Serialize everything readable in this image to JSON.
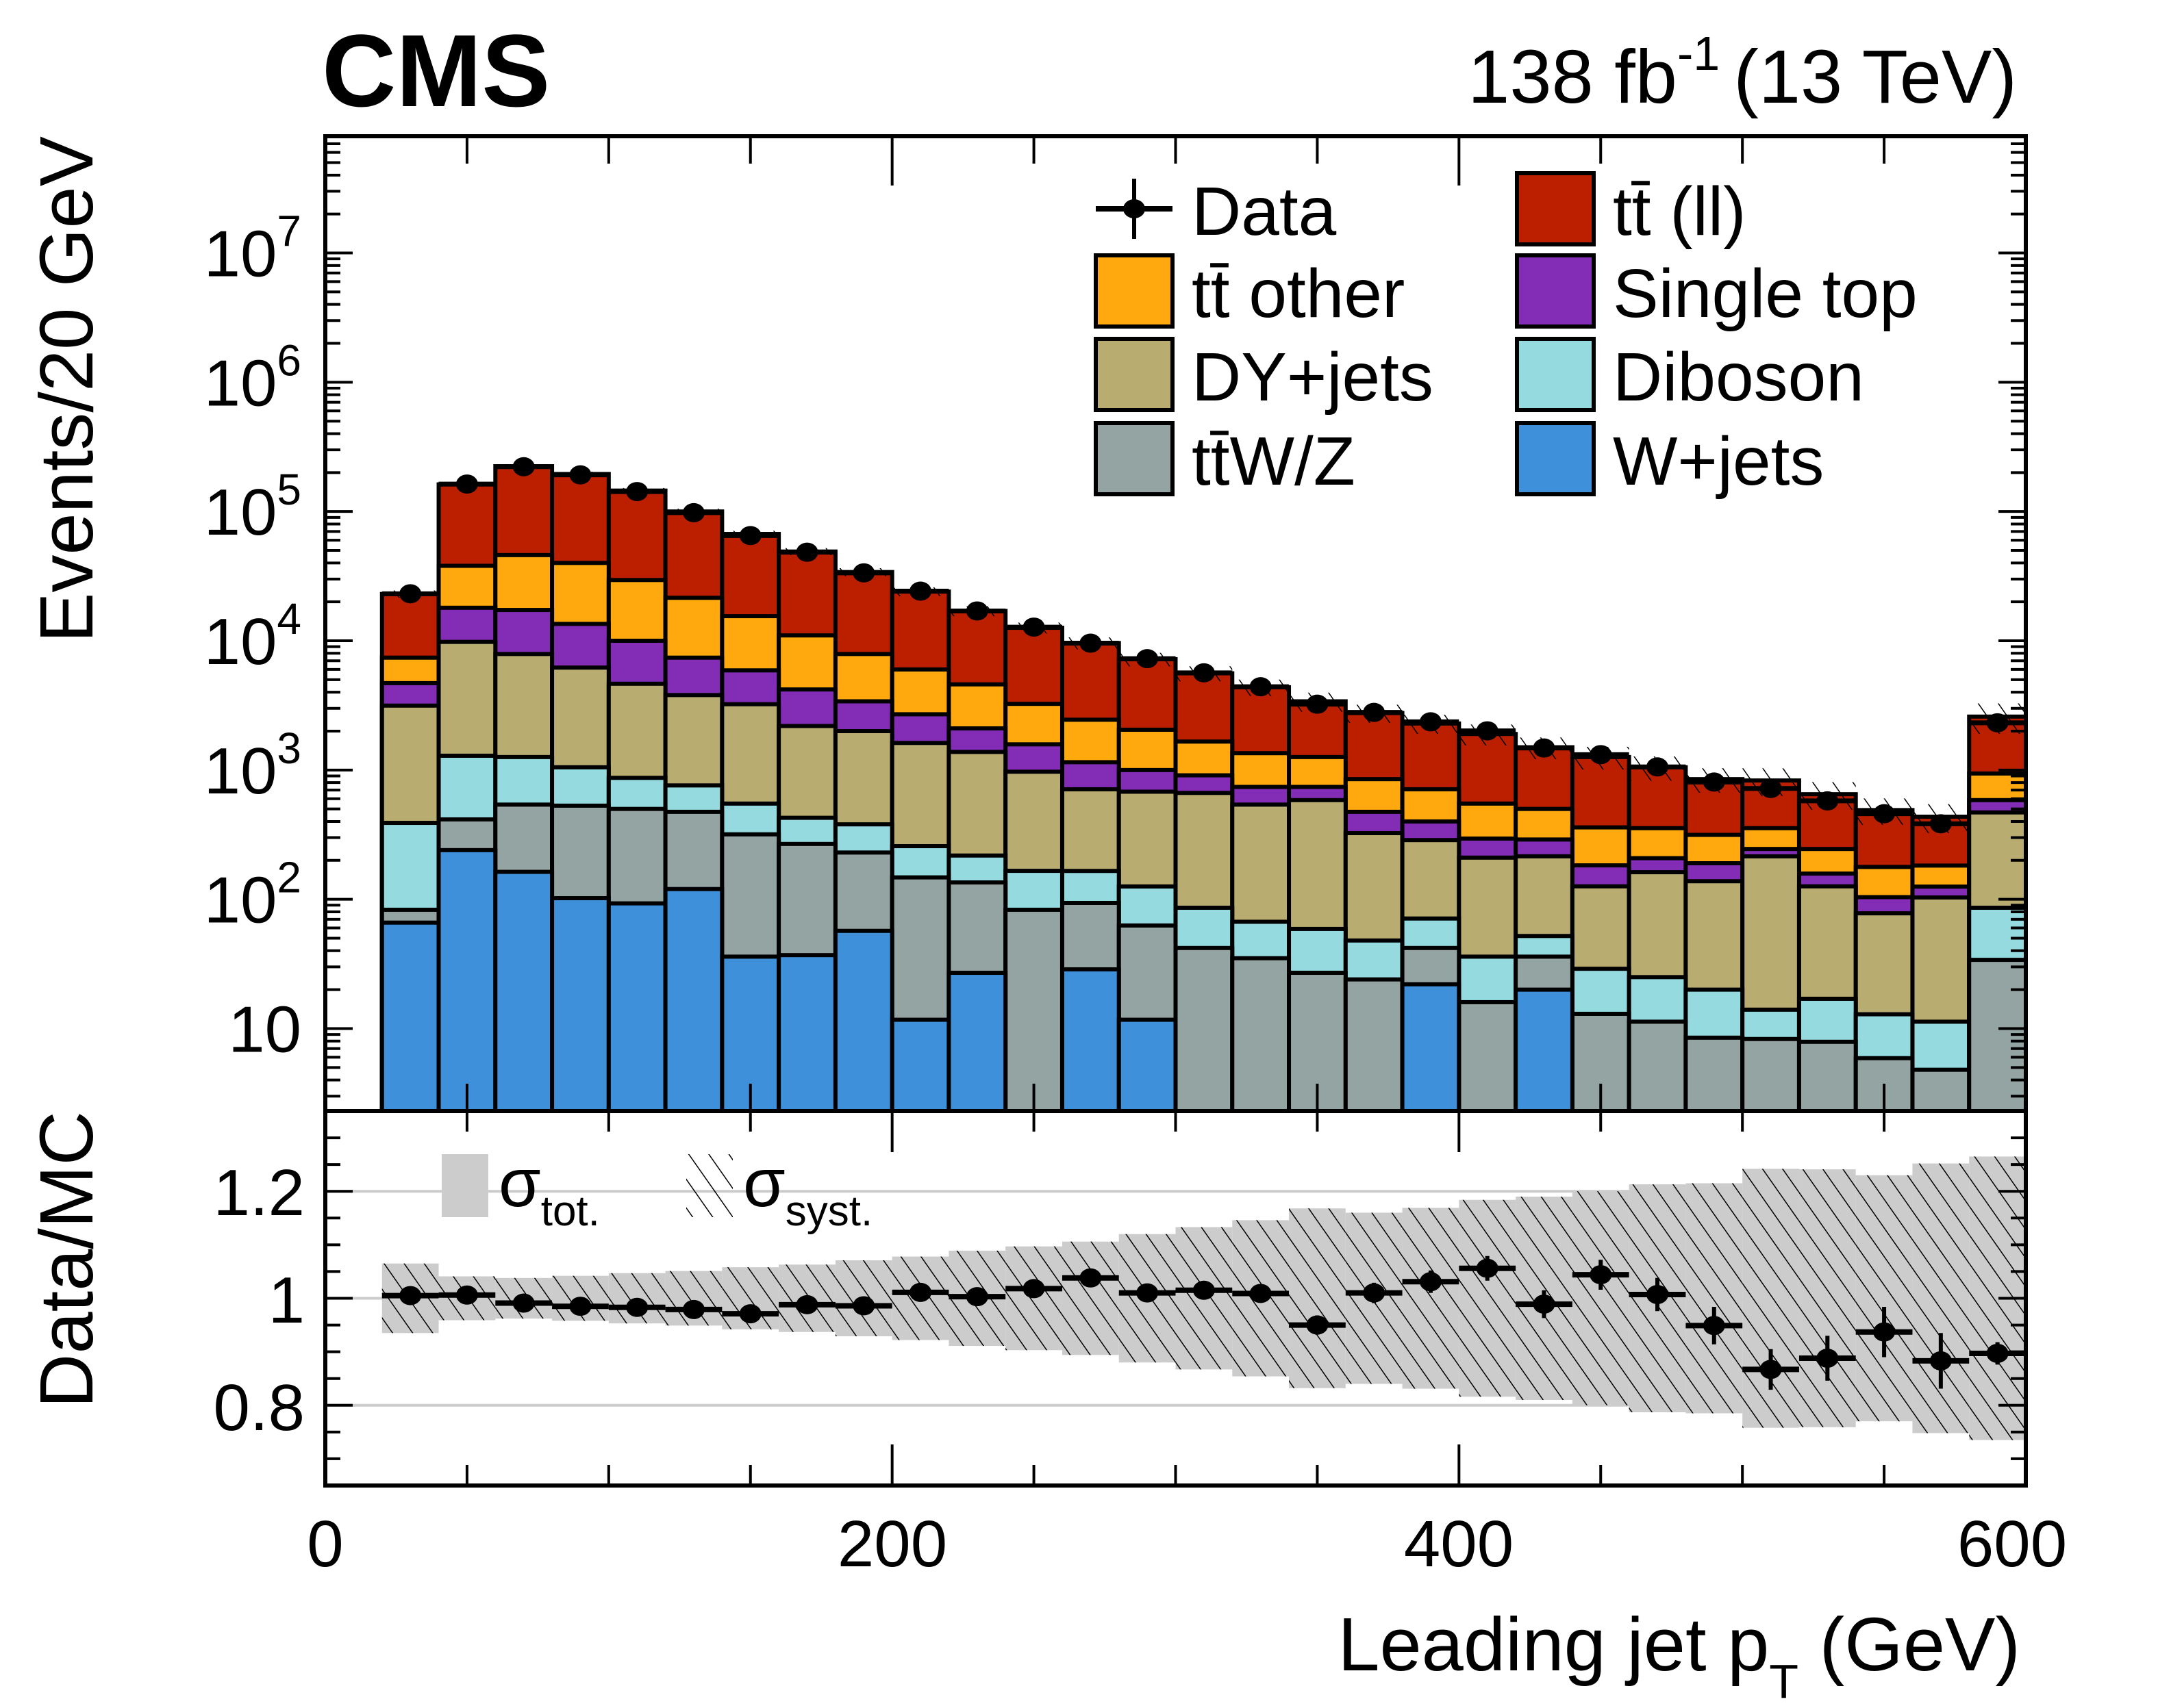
{
  "header": {
    "experiment": "CMS",
    "lumi_prefix": "138 fb",
    "lumi_exp": "-1",
    "energy": "(13 TeV)"
  },
  "colors": {
    "ttll": "#bc1f00",
    "tt_other": "#ffa90e",
    "single_top": "#832db6",
    "dy_jets": "#b9ac70",
    "diboson": "#94dadf",
    "ttwz": "#94a4a2",
    "w_jets": "#3f90da",
    "band": "#cccccc",
    "grid": "#cccccc"
  },
  "legend": {
    "items": [
      {
        "key": "data",
        "label": "Data",
        "type": "marker"
      },
      {
        "key": "ttll",
        "label": "tt̄ (ll)",
        "type": "box"
      },
      {
        "key": "tt_other",
        "label": "tt̄ other",
        "type": "box"
      },
      {
        "key": "single_top",
        "label": "Single top",
        "type": "box"
      },
      {
        "key": "dy_jets",
        "label": "DY+jets",
        "type": "box"
      },
      {
        "key": "diboson",
        "label": "Diboson",
        "type": "box"
      },
      {
        "key": "ttwz",
        "label": "tt̄W/Z",
        "type": "box"
      },
      {
        "key": "w_jets",
        "label": "W+jets",
        "type": "box"
      }
    ],
    "ratio_items": [
      {
        "symbol": "σ",
        "sub": "tot.",
        "type": "solid"
      },
      {
        "symbol": "σ",
        "sub": "syst.",
        "type": "hatched"
      }
    ]
  },
  "chart_data": [
    {
      "type": "bar",
      "stacked": true,
      "title": "",
      "xlabel": "Leading jet p_T (GeV)",
      "ylabel": "Events/20 GeV",
      "yscale": "log",
      "xlim": [
        0,
        600
      ],
      "ylim": [
        2.3,
        80000000
      ],
      "x_ticks": [
        "0",
        "200",
        "400",
        "600"
      ],
      "y_ticks": [
        {
          "base": "10",
          "exp": ""
        },
        {
          "base": "10",
          "exp": "2"
        },
        {
          "base": "10",
          "exp": "3"
        },
        {
          "base": "10",
          "exp": "4"
        },
        {
          "base": "10",
          "exp": "5"
        },
        {
          "base": "10",
          "exp": "6"
        },
        {
          "base": "10",
          "exp": "7"
        }
      ],
      "y_tick_values": [
        10,
        100,
        1000,
        10000,
        100000,
        1000000,
        10000000
      ],
      "bin_edges": [
        20,
        40,
        60,
        80,
        100,
        120,
        140,
        160,
        180,
        200,
        220,
        240,
        260,
        280,
        300,
        320,
        340,
        360,
        380,
        400,
        420,
        440,
        460,
        480,
        500,
        520,
        540,
        560,
        580,
        600
      ],
      "series": [
        {
          "key": "w_jets",
          "name": "W+jets",
          "values": [
            66,
            240,
            163,
            102,
            93,
            120,
            36,
            37,
            57,
            11.7,
            27,
            0,
            28.7,
            11.7,
            0,
            0,
            0,
            0,
            22,
            0,
            20,
            0,
            0,
            0,
            0,
            0,
            0,
            0,
            0
          ]
        },
        {
          "key": "ttwz",
          "name": "tt̄W/Z",
          "values": [
            17,
            175,
            377,
            428,
            407,
            355,
            282,
            231,
            173,
            136,
            108,
            83,
            65,
            51,
            42,
            35,
            27,
            24,
            20,
            16,
            16,
            13,
            11.3,
            8.5,
            8.3,
            7.9,
            5.9,
            4.8,
            34
          ]
        },
        {
          "key": "diboson",
          "name": "Diboson",
          "values": [
            307,
            875,
            720,
            520,
            370,
            285,
            232,
            159,
            150,
            110,
            83,
            83,
            72,
            63,
            44,
            32,
            32,
            24,
            29,
            20,
            16,
            16,
            13.7,
            11.5,
            5.7,
            9.1,
            7,
            6.5,
            52
          ]
        },
        {
          "key": "dy_jets",
          "name": "DY+jets",
          "values": [
            2760,
            8510,
            6640,
            5150,
            3780,
            3040,
            2680,
            1763,
            1620,
            1362,
            1162,
            804,
            544,
            554,
            579,
            473,
            526,
            277,
            216,
            174,
            163,
            97,
            137,
            118,
            201,
            109,
            65,
            92,
            384
          ]
        },
        {
          "key": "single_top",
          "name": "Single top",
          "values": [
            1550,
            8200,
            9400,
            7300,
            5350,
            3600,
            2670,
            2010,
            1400,
            1080,
            720,
            610,
            440,
            320,
            245,
            200,
            155,
            150,
            113,
            85,
            75,
            57,
            46,
            52,
            30,
            32,
            26,
            22,
            115
          ]
        },
        {
          "key": "tt_other",
          "name": "tt̄ other",
          "values": [
            2700,
            20000,
            28700,
            26500,
            19500,
            14100,
            9600,
            6800,
            4500,
            3300,
            2500,
            1670,
            1300,
            1050,
            750,
            610,
            520,
            375,
            310,
            255,
            210,
            177,
            147,
            125,
            110,
            87,
            74,
            57,
            355
          ]
        },
        {
          "key": "ttll",
          "name": "tt̄ (ll)",
          "values": [
            15600,
            124000,
            178000,
            155000,
            115600,
            78500,
            51500,
            38000,
            26100,
            18000,
            12400,
            9350,
            7150,
            5150,
            3940,
            3020,
            2140,
            1910,
            1580,
            1350,
            1000,
            900,
            695,
            535,
            475,
            405,
            312,
            253,
            1650
          ]
        }
      ],
      "data": {
        "name": "Data",
        "values": [
          23100,
          163000,
          222000,
          192000,
          142600,
          97900,
          65100,
          48400,
          33500,
          24200,
          17000,
          12750,
          9580,
          7270,
          5650,
          4410,
          3230,
          2790,
          2360,
          2010,
          1480,
          1315,
          1057,
          807,
          720,
          577,
          459,
          384,
          2320
        ]
      }
    },
    {
      "type": "scatter",
      "title": "",
      "xlabel": "Leading jet p_T (GeV)",
      "ylabel": "Data/MC",
      "xlim": [
        0,
        600
      ],
      "ylim": [
        0.65,
        1.35
      ],
      "y_ticks": [
        "0.8",
        "1",
        "1.2"
      ],
      "y_tick_values": [
        0.8,
        1.0,
        1.2
      ],
      "grid_lines": [
        0.8,
        1.0,
        1.2
      ],
      "bin_edges": [
        20,
        40,
        60,
        80,
        100,
        120,
        140,
        160,
        180,
        200,
        220,
        240,
        260,
        280,
        300,
        320,
        340,
        360,
        380,
        400,
        420,
        440,
        460,
        480,
        500,
        520,
        540,
        560,
        580,
        600
      ],
      "ratio": [
        1.005,
        1.006,
        0.991,
        0.985,
        0.983,
        0.979,
        0.971,
        0.988,
        0.986,
        1.011,
        1.003,
        1.018,
        1.038,
        1.01,
        1.015,
        1.009,
        0.95,
        1.01,
        1.031,
        1.056,
        0.989,
        1.044,
        1.007,
        0.949,
        0.867,
        0.888,
        0.937,
        0.883,
        0.897
      ],
      "ratio_stat_err": [
        0.007,
        0.003,
        0.003,
        0.003,
        0.003,
        0.004,
        0.005,
        0.005,
        0.006,
        0.007,
        0.008,
        0.009,
        0.011,
        0.012,
        0.014,
        0.016,
        0.018,
        0.019,
        0.021,
        0.023,
        0.026,
        0.028,
        0.031,
        0.035,
        0.038,
        0.042,
        0.047,
        0.052,
        0.021
      ],
      "band_tot_halfwidth": [
        0.065,
        0.041,
        0.038,
        0.042,
        0.047,
        0.051,
        0.058,
        0.063,
        0.071,
        0.078,
        0.089,
        0.097,
        0.106,
        0.12,
        0.133,
        0.146,
        0.168,
        0.16,
        0.169,
        0.184,
        0.19,
        0.2,
        0.213,
        0.215,
        0.242,
        0.241,
        0.23,
        0.252,
        0.265
      ]
    }
  ]
}
